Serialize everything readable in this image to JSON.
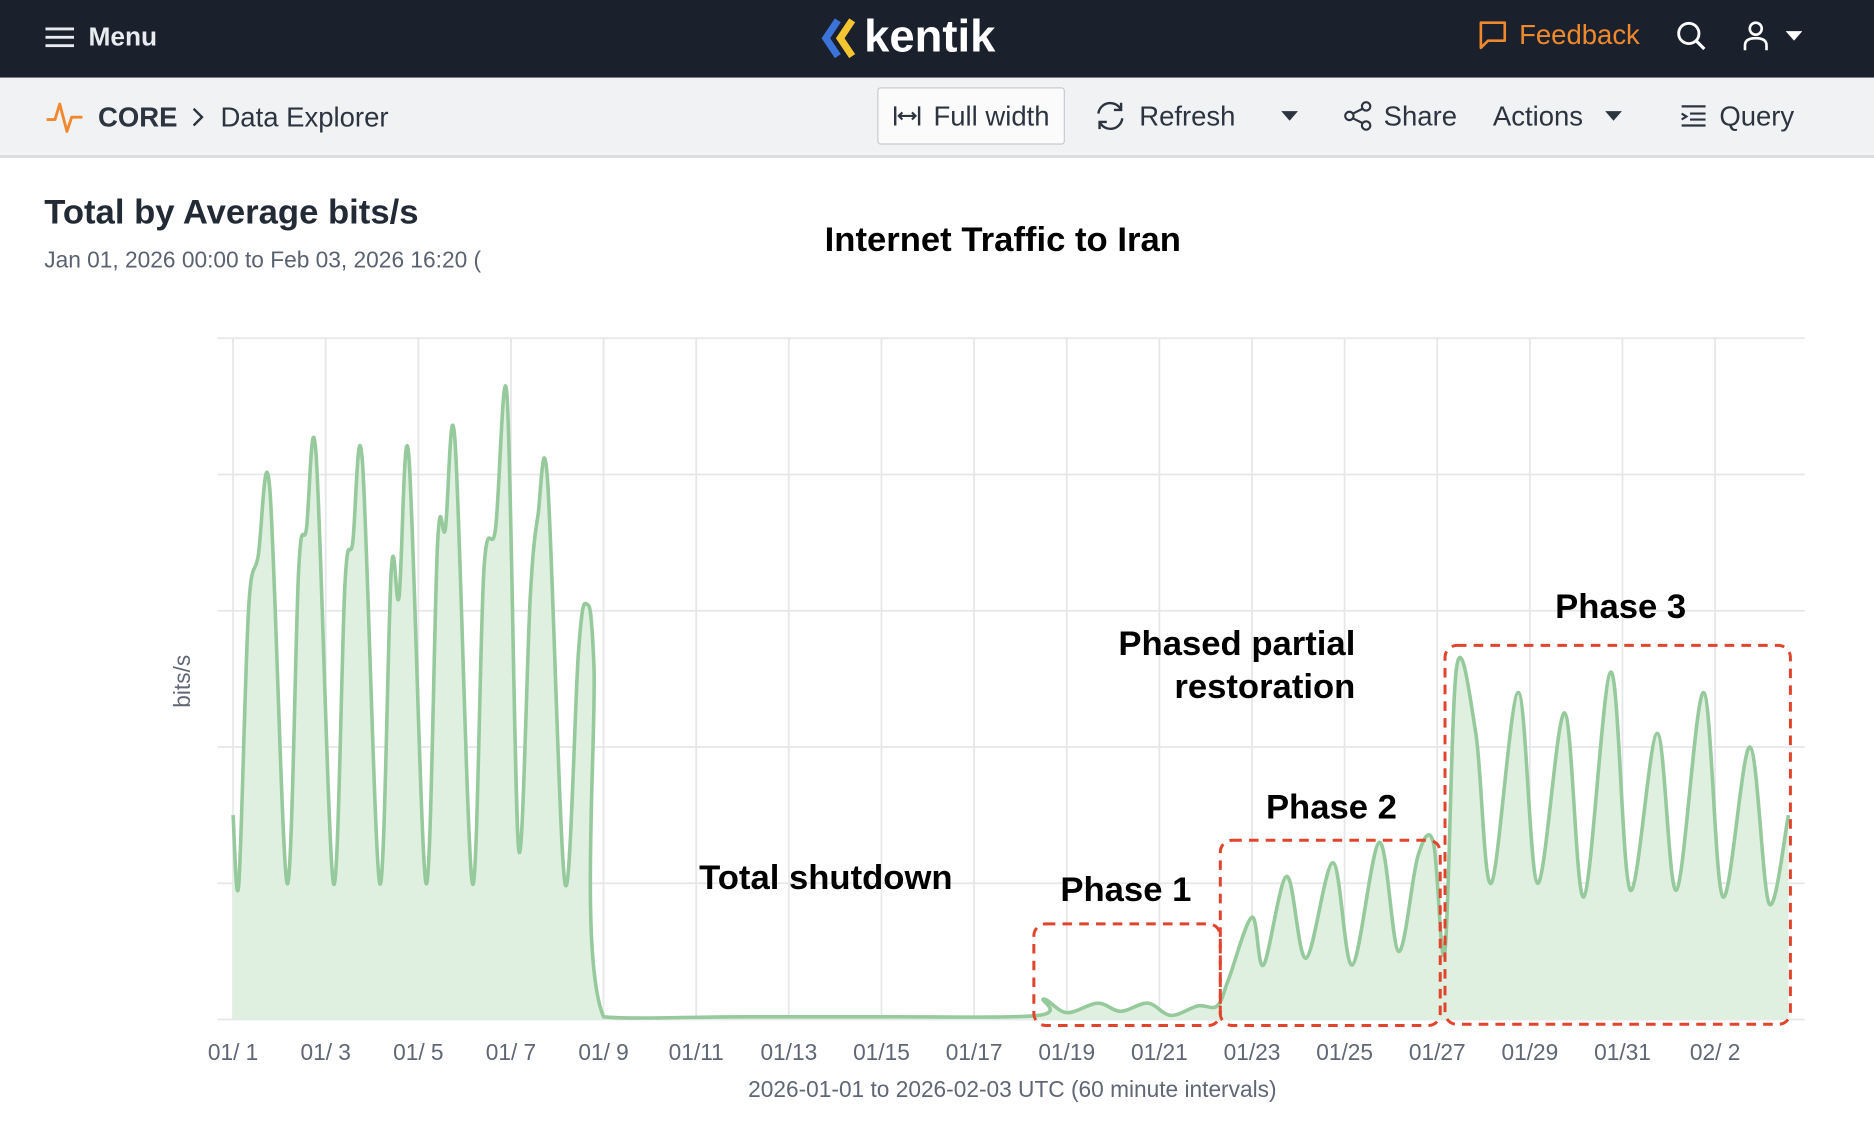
{
  "header": {
    "menu_label": "Menu",
    "logo": "kentik",
    "feedback_label": "Feedback",
    "icons": [
      "menu-icon",
      "feedback-icon",
      "search-icon",
      "user-icon",
      "caret-down-icon"
    ],
    "accent": "#f0892e",
    "background": "#1a202c"
  },
  "toolbar": {
    "breadcrumb_root": "CORE",
    "breadcrumb_page": "Data Explorer",
    "full_width": "Full width",
    "refresh": "Refresh",
    "share": "Share",
    "actions": "Actions",
    "query": "Query"
  },
  "panel": {
    "title": "Total by Average bits/s",
    "range": "Jan 01, 2026 00:00 to Feb 03, 2026 16:20 ("
  },
  "chart_data": {
    "type": "area",
    "title": "Internet Traffic to Iran",
    "xlabel": "2026-01-01 to 2026-02-03 UTC (60 minute intervals)",
    "ylabel": "bits/s",
    "x_tick_labels": [
      "01/ 1",
      "01/ 3",
      "01/ 5",
      "01/ 7",
      "01/ 9",
      "01/11",
      "01/13",
      "01/15",
      "01/17",
      "01/19",
      "01/21",
      "01/23",
      "01/25",
      "01/27",
      "01/29",
      "01/31",
      "02/ 2"
    ],
    "ylim": [
      0,
      5
    ],
    "y_unit_note": "no y tick labels shown; values relative to gridline spacing",
    "grid": true,
    "line_color": "#96c99c",
    "fill_color": "#dff0e0",
    "annotation_color": "#e0442c",
    "annotations": [
      {
        "label": "Total shutdown",
        "span": [
          "2026-01-09",
          "2026-01-18"
        ]
      },
      {
        "label": "Phase 1",
        "span": [
          "2026-01-18T12:00",
          "2026-01-22T12:00"
        ]
      },
      {
        "label": "Phase 2",
        "span": [
          "2026-01-22T12:00",
          "2026-01-27T06:00"
        ]
      },
      {
        "label": "Phase 3",
        "span": [
          "2026-01-27T06:00",
          "2026-02-03T16:00"
        ]
      },
      {
        "label_lines": [
          "Phased partial",
          "restoration"
        ]
      }
    ],
    "points": [
      [
        "2026-01-01T00:00",
        1.5
      ],
      [
        "2026-01-01T03:00",
        1.0
      ],
      [
        "2026-01-01T08:00",
        3.0
      ],
      [
        "2026-01-01T13:00",
        3.4
      ],
      [
        "2026-01-01T19:00",
        3.9
      ],
      [
        "2026-01-02T04:00",
        1.0
      ],
      [
        "2026-01-02T10:00",
        3.3
      ],
      [
        "2026-01-02T14:00",
        3.6
      ],
      [
        "2026-01-02T19:00",
        4.15
      ],
      [
        "2026-01-03T04:00",
        1.0
      ],
      [
        "2026-01-03T10:00",
        3.2
      ],
      [
        "2026-01-03T14:00",
        3.5
      ],
      [
        "2026-01-03T19:00",
        4.1
      ],
      [
        "2026-01-04T04:00",
        1.0
      ],
      [
        "2026-01-04T10:00",
        3.3
      ],
      [
        "2026-01-04T14:00",
        3.1
      ],
      [
        "2026-01-04T19:00",
        4.15
      ],
      [
        "2026-01-05T04:00",
        1.0
      ],
      [
        "2026-01-05T10:00",
        3.5
      ],
      [
        "2026-01-05T14:00",
        3.6
      ],
      [
        "2026-01-05T19:00",
        4.25
      ],
      [
        "2026-01-06T04:00",
        1.0
      ],
      [
        "2026-01-06T10:00",
        3.3
      ],
      [
        "2026-01-06T16:00",
        3.6
      ],
      [
        "2026-01-06T22:00",
        4.57
      ],
      [
        "2026-01-07T04:00",
        1.25
      ],
      [
        "2026-01-07T10:00",
        3.1
      ],
      [
        "2026-01-07T14:00",
        3.7
      ],
      [
        "2026-01-07T19:00",
        3.95
      ],
      [
        "2026-01-08T04:00",
        1.0
      ],
      [
        "2026-01-08T11:00",
        2.7
      ],
      [
        "2026-01-08T15:00",
        3.05
      ],
      [
        "2026-01-08T19:00",
        2.6
      ],
      [
        "2026-01-09T00:00",
        0.02
      ],
      [
        "2026-01-12T00:00",
        0.02
      ],
      [
        "2026-01-15T00:00",
        0.02
      ],
      [
        "2026-01-18T09:00",
        0.03
      ],
      [
        "2026-01-18T12:00",
        0.15
      ],
      [
        "2026-01-19T00:00",
        0.05
      ],
      [
        "2026-01-19T16:00",
        0.12
      ],
      [
        "2026-01-20T04:00",
        0.06
      ],
      [
        "2026-01-20T18:00",
        0.12
      ],
      [
        "2026-01-21T06:00",
        0.03
      ],
      [
        "2026-01-21T20:00",
        0.1
      ],
      [
        "2026-01-22T06:00",
        0.1
      ],
      [
        "2026-01-22T12:00",
        0.3
      ],
      [
        "2026-01-23T00:00",
        0.75
      ],
      [
        "2026-01-23T06:00",
        0.4
      ],
      [
        "2026-01-23T18:00",
        1.05
      ],
      [
        "2026-01-24T04:00",
        0.45
      ],
      [
        "2026-01-24T18:00",
        1.15
      ],
      [
        "2026-01-25T04:00",
        0.4
      ],
      [
        "2026-01-25T18:00",
        1.3
      ],
      [
        "2026-01-26T04:00",
        0.5
      ],
      [
        "2026-01-26T14:00",
        1.2
      ],
      [
        "2026-01-26T22:00",
        1.3
      ],
      [
        "2026-01-27T04:00",
        0.5
      ],
      [
        "2026-01-27T10:00",
        2.58
      ],
      [
        "2026-01-27T20:00",
        2.1
      ],
      [
        "2026-01-28T04:00",
        1.0
      ],
      [
        "2026-01-28T18:00",
        2.4
      ],
      [
        "2026-01-29T04:00",
        1.0
      ],
      [
        "2026-01-29T18:00",
        2.25
      ],
      [
        "2026-01-30T04:00",
        0.9
      ],
      [
        "2026-01-30T18:00",
        2.55
      ],
      [
        "2026-01-31T04:00",
        0.95
      ],
      [
        "2026-01-31T18:00",
        2.1
      ],
      [
        "2026-02-01T04:00",
        0.95
      ],
      [
        "2026-02-01T18:00",
        2.4
      ],
      [
        "2026-02-02T04:00",
        0.9
      ],
      [
        "2026-02-02T18:00",
        2.0
      ],
      [
        "2026-02-03T04:00",
        0.85
      ],
      [
        "2026-02-03T14:00",
        1.5
      ]
    ]
  }
}
